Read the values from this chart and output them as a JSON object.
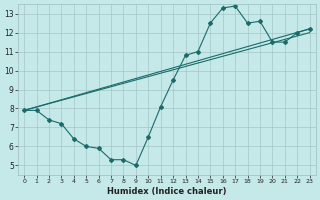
{
  "xlabel": "Humidex (Indice chaleur)",
  "ylabel": "",
  "bg_color": "#c5e8e8",
  "grid_color": "#9dbdbd",
  "line_color": "#1a6b6b",
  "xlim": [
    -0.5,
    23.5
  ],
  "ylim": [
    4.5,
    13.5
  ],
  "xticks": [
    0,
    1,
    2,
    3,
    4,
    5,
    6,
    7,
    8,
    9,
    10,
    11,
    12,
    13,
    14,
    15,
    16,
    17,
    18,
    19,
    20,
    21,
    22,
    23
  ],
  "yticks": [
    5,
    6,
    7,
    8,
    9,
    10,
    11,
    12,
    13
  ],
  "series": [
    {
      "x": [
        0,
        1,
        2,
        3,
        4,
        5,
        6,
        7,
        8,
        9,
        10,
        11,
        12,
        13,
        14,
        15,
        16,
        17,
        18,
        19,
        20,
        21,
        22,
        23
      ],
      "y": [
        7.9,
        7.9,
        7.4,
        7.2,
        6.4,
        6.0,
        5.9,
        5.3,
        5.3,
        5.0,
        6.5,
        8.1,
        9.5,
        10.8,
        11.0,
        12.5,
        13.3,
        13.4,
        12.5,
        12.6,
        11.5,
        11.5,
        12.0,
        12.2
      ]
    },
    {
      "x": [
        0,
        23
      ],
      "y": [
        7.9,
        12.2
      ]
    },
    {
      "x": [
        0,
        23
      ],
      "y": [
        7.9,
        12.0
      ]
    }
  ]
}
